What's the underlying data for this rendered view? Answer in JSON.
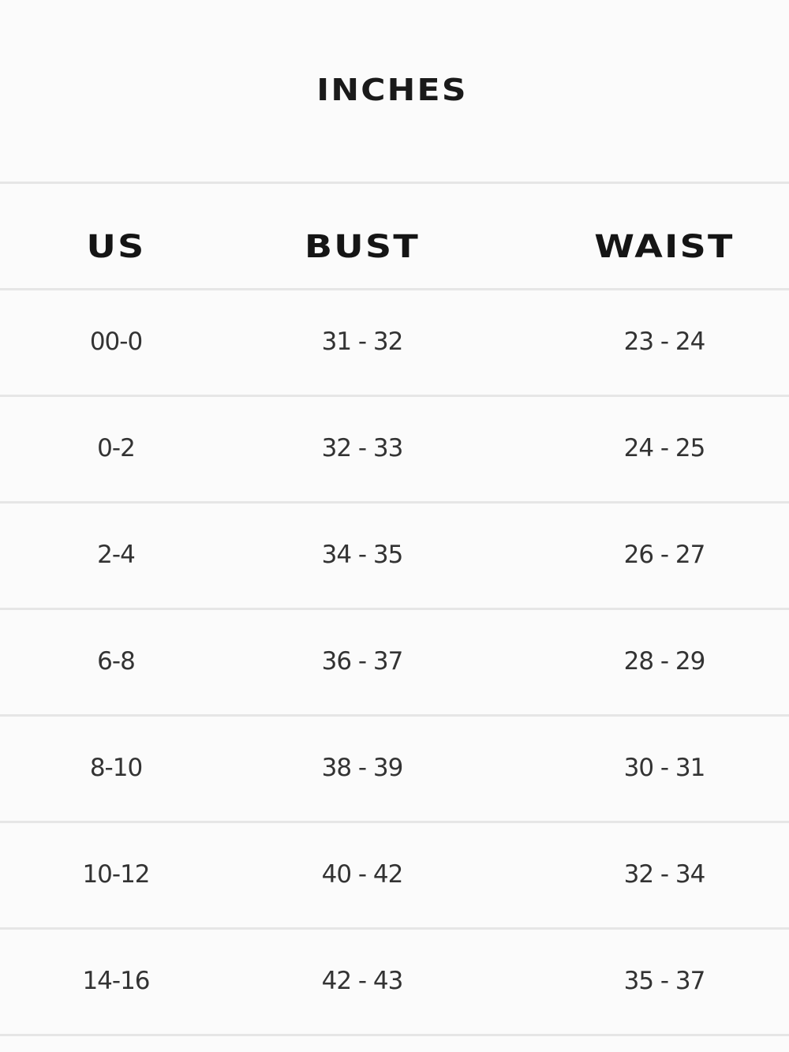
{
  "title": "INCHES",
  "columns": [
    "US",
    "BUST",
    "WAIST"
  ],
  "rows": [
    [
      "00-0",
      "31 - 32",
      "23 - 24"
    ],
    [
      "0-2",
      "32 - 33",
      "24 - 25"
    ],
    [
      "2-4",
      "34 - 35",
      "26 - 27"
    ],
    [
      "6-8",
      "36 - 37",
      "28 - 29"
    ],
    [
      "8-10",
      "38 - 39",
      "30 - 31"
    ],
    [
      "10-12",
      "40 - 42",
      "32 - 34"
    ],
    [
      "14-16",
      "42 - 43",
      "35 - 37"
    ]
  ]
}
